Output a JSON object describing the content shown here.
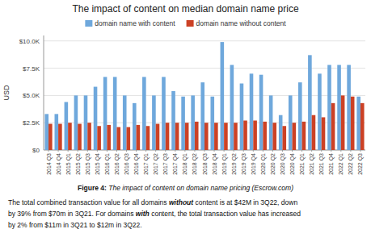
{
  "chart_data": {
    "type": "bar",
    "title": "The impact of content on median domain name price",
    "ylabel": "USD",
    "categories": [
      "2014 Q3",
      "2014 Q4",
      "2015 Q1",
      "2015 Q2",
      "2015 Q3",
      "2015 Q4",
      "2016 Q1",
      "2016 Q2",
      "2016 Q3",
      "2016 Q4",
      "2017 Q1",
      "2017 Q2",
      "2017 Q3",
      "2017 Q4",
      "2018 Q1",
      "2018 Q2",
      "2018 Q3",
      "2018 Q4",
      "2019 Q1",
      "2019 Q2",
      "2019 Q3",
      "2019 Q4",
      "2020 Q1",
      "2020 Q2",
      "2020 Q3",
      "2020 Q4",
      "2021 Q1",
      "2021 Q2",
      "2021 Q3",
      "2021 Q4",
      "2022 Q1",
      "2022 Q2",
      "2022 Q3"
    ],
    "series": [
      {
        "name": "domain name with content",
        "color": "#6fa8dc",
        "values": [
          3300,
          3300,
          4400,
          5000,
          5000,
          5800,
          6700,
          6700,
          5000,
          4300,
          6700,
          5000,
          6700,
          5400,
          4900,
          5000,
          6200,
          4900,
          9900,
          7800,
          6100,
          7000,
          6900,
          5000,
          3200,
          5000,
          6200,
          8700,
          7000,
          7800,
          7800,
          7800,
          4900
        ]
      },
      {
        "name": "domain name without content",
        "color": "#cc4125",
        "values": [
          2400,
          2400,
          2500,
          2400,
          2500,
          2200,
          2300,
          2100,
          2100,
          2300,
          2200,
          2400,
          2500,
          2500,
          2500,
          2600,
          2500,
          2500,
          2500,
          2500,
          2700,
          2700,
          2600,
          2500,
          2200,
          2500,
          2600,
          3200,
          3000,
          4300,
          5000,
          4900,
          4300
        ]
      }
    ],
    "ylim": [
      0,
      10500
    ],
    "yticks": [
      {
        "value": 0,
        "label": "$0"
      },
      {
        "value": 2500,
        "label": "$2.5K"
      },
      {
        "value": 5000,
        "label": "$5.0K"
      },
      {
        "value": 7500,
        "label": "$7.5K"
      },
      {
        "value": 10000,
        "label": "$10.0K"
      }
    ],
    "grid": true,
    "legend": "top",
    "caption": [
      "Figure 4:",
      "The impact of content on domain name pricing (Escrow.com)"
    ],
    "body": [
      [
        "The total combined transaction value for all domains",
        "without",
        "content is at $42M in 3Q22, down"
      ],
      [
        "by 39% from $70m in 3Q21. For domains",
        "with",
        "content, the total transaction value has increased"
      ],
      [
        "by 2% from $11m in 3Q21 to $12m in 3Q22."
      ]
    ]
  }
}
